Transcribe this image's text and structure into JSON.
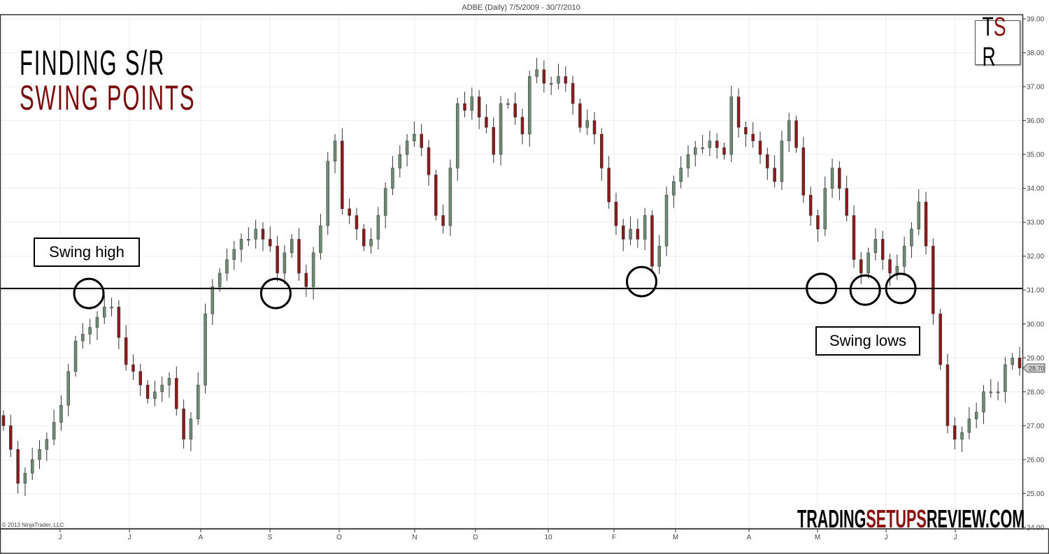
{
  "chart_data": {
    "type": "candlestick",
    "title": "ADBE (Daily)  7/5/2009 - 30/7/2010",
    "ylim": [
      24,
      39
    ],
    "yticks": [
      "24.00",
      "25.00",
      "26.00",
      "27.00",
      "28.00",
      "29.00",
      "30.00",
      "31.00",
      "32.00",
      "33.00",
      "34.00",
      "35.00",
      "36.00",
      "37.00",
      "38.00",
      "39.00"
    ],
    "xticks": [
      "J",
      "J",
      "A",
      "S",
      "O",
      "N",
      "D",
      "10",
      "F",
      "M",
      "A",
      "M",
      "J",
      "J"
    ],
    "last_price": "28.70",
    "closes": [
      27.0,
      26.3,
      25.3,
      25.6,
      26.0,
      26.3,
      26.6,
      27.1,
      27.6,
      28.6,
      29.5,
      29.7,
      29.9,
      30.2,
      30.5,
      30.5,
      29.6,
      28.8,
      28.6,
      28.2,
      27.8,
      28.0,
      28.2,
      28.4,
      27.5,
      26.6,
      27.2,
      28.2,
      30.3,
      31.1,
      31.5,
      31.9,
      32.2,
      32.5,
      32.5,
      32.8,
      32.5,
      32.3,
      31.5,
      32.1,
      32.5,
      31.5,
      31.1,
      32.1,
      32.9,
      34.8,
      35.4,
      33.4,
      33.2,
      32.8,
      32.3,
      32.5,
      33.2,
      34.0,
      34.6,
      35.0,
      35.4,
      35.6,
      35.2,
      34.4,
      33.2,
      32.9,
      34.6,
      36.5,
      36.3,
      36.7,
      36.1,
      35.8,
      35.0,
      36.5,
      36.5,
      36.1,
      35.6,
      37.3,
      37.5,
      37.1,
      37.1,
      37.3,
      37.1,
      36.5,
      35.8,
      36.0,
      35.6,
      34.6,
      33.6,
      32.9,
      32.5,
      32.8,
      32.5,
      33.2,
      31.7,
      32.3,
      33.8,
      34.2,
      34.6,
      35.0,
      35.2,
      35.2,
      35.4,
      35.2,
      35.0,
      36.7,
      35.8,
      35.6,
      35.4,
      35.0,
      34.6,
      34.2,
      35.4,
      36.0,
      35.2,
      33.8,
      33.2,
      32.8,
      34.0,
      34.6,
      34.0,
      33.2,
      31.9,
      31.5,
      32.1,
      32.5,
      31.9,
      31.5,
      31.7,
      32.3,
      32.8,
      33.6,
      32.3,
      30.3,
      28.8,
      27.0,
      26.6,
      26.8,
      27.2,
      27.4,
      28.0,
      28.0,
      28.0,
      28.8,
      29.0,
      28.7
    ],
    "support_resistance_level": 31.05,
    "swing_points": [
      {
        "type": "high",
        "position": 0.084,
        "price": 30.9
      },
      {
        "type": "low",
        "position": 0.268,
        "price": 30.9
      },
      {
        "type": "low",
        "position": 0.628,
        "price": 31.25
      },
      {
        "type": "low",
        "position": 0.805,
        "price": 31.05
      },
      {
        "type": "low",
        "position": 0.848,
        "price": 31.0
      },
      {
        "type": "low",
        "position": 0.883,
        "price": 31.05
      }
    ],
    "colors": {
      "up": "#6e8a74",
      "down": "#8b1a1a",
      "line": "#000000"
    }
  },
  "headline": {
    "line1": "FINDING S/R",
    "line2": "SWING POINTS",
    "line2_color": "#7a0a0a"
  },
  "annotations": {
    "swing_high": "Swing high",
    "swing_lows": "Swing lows"
  },
  "copyright": "© 2013 NinjaTrader, LLC",
  "logo": {
    "t": "T",
    "s": "S",
    "r": "R"
  },
  "watermark": {
    "part1": "TRADING",
    "part2": "SETUPS",
    "part3": "REVIEW.COM"
  }
}
